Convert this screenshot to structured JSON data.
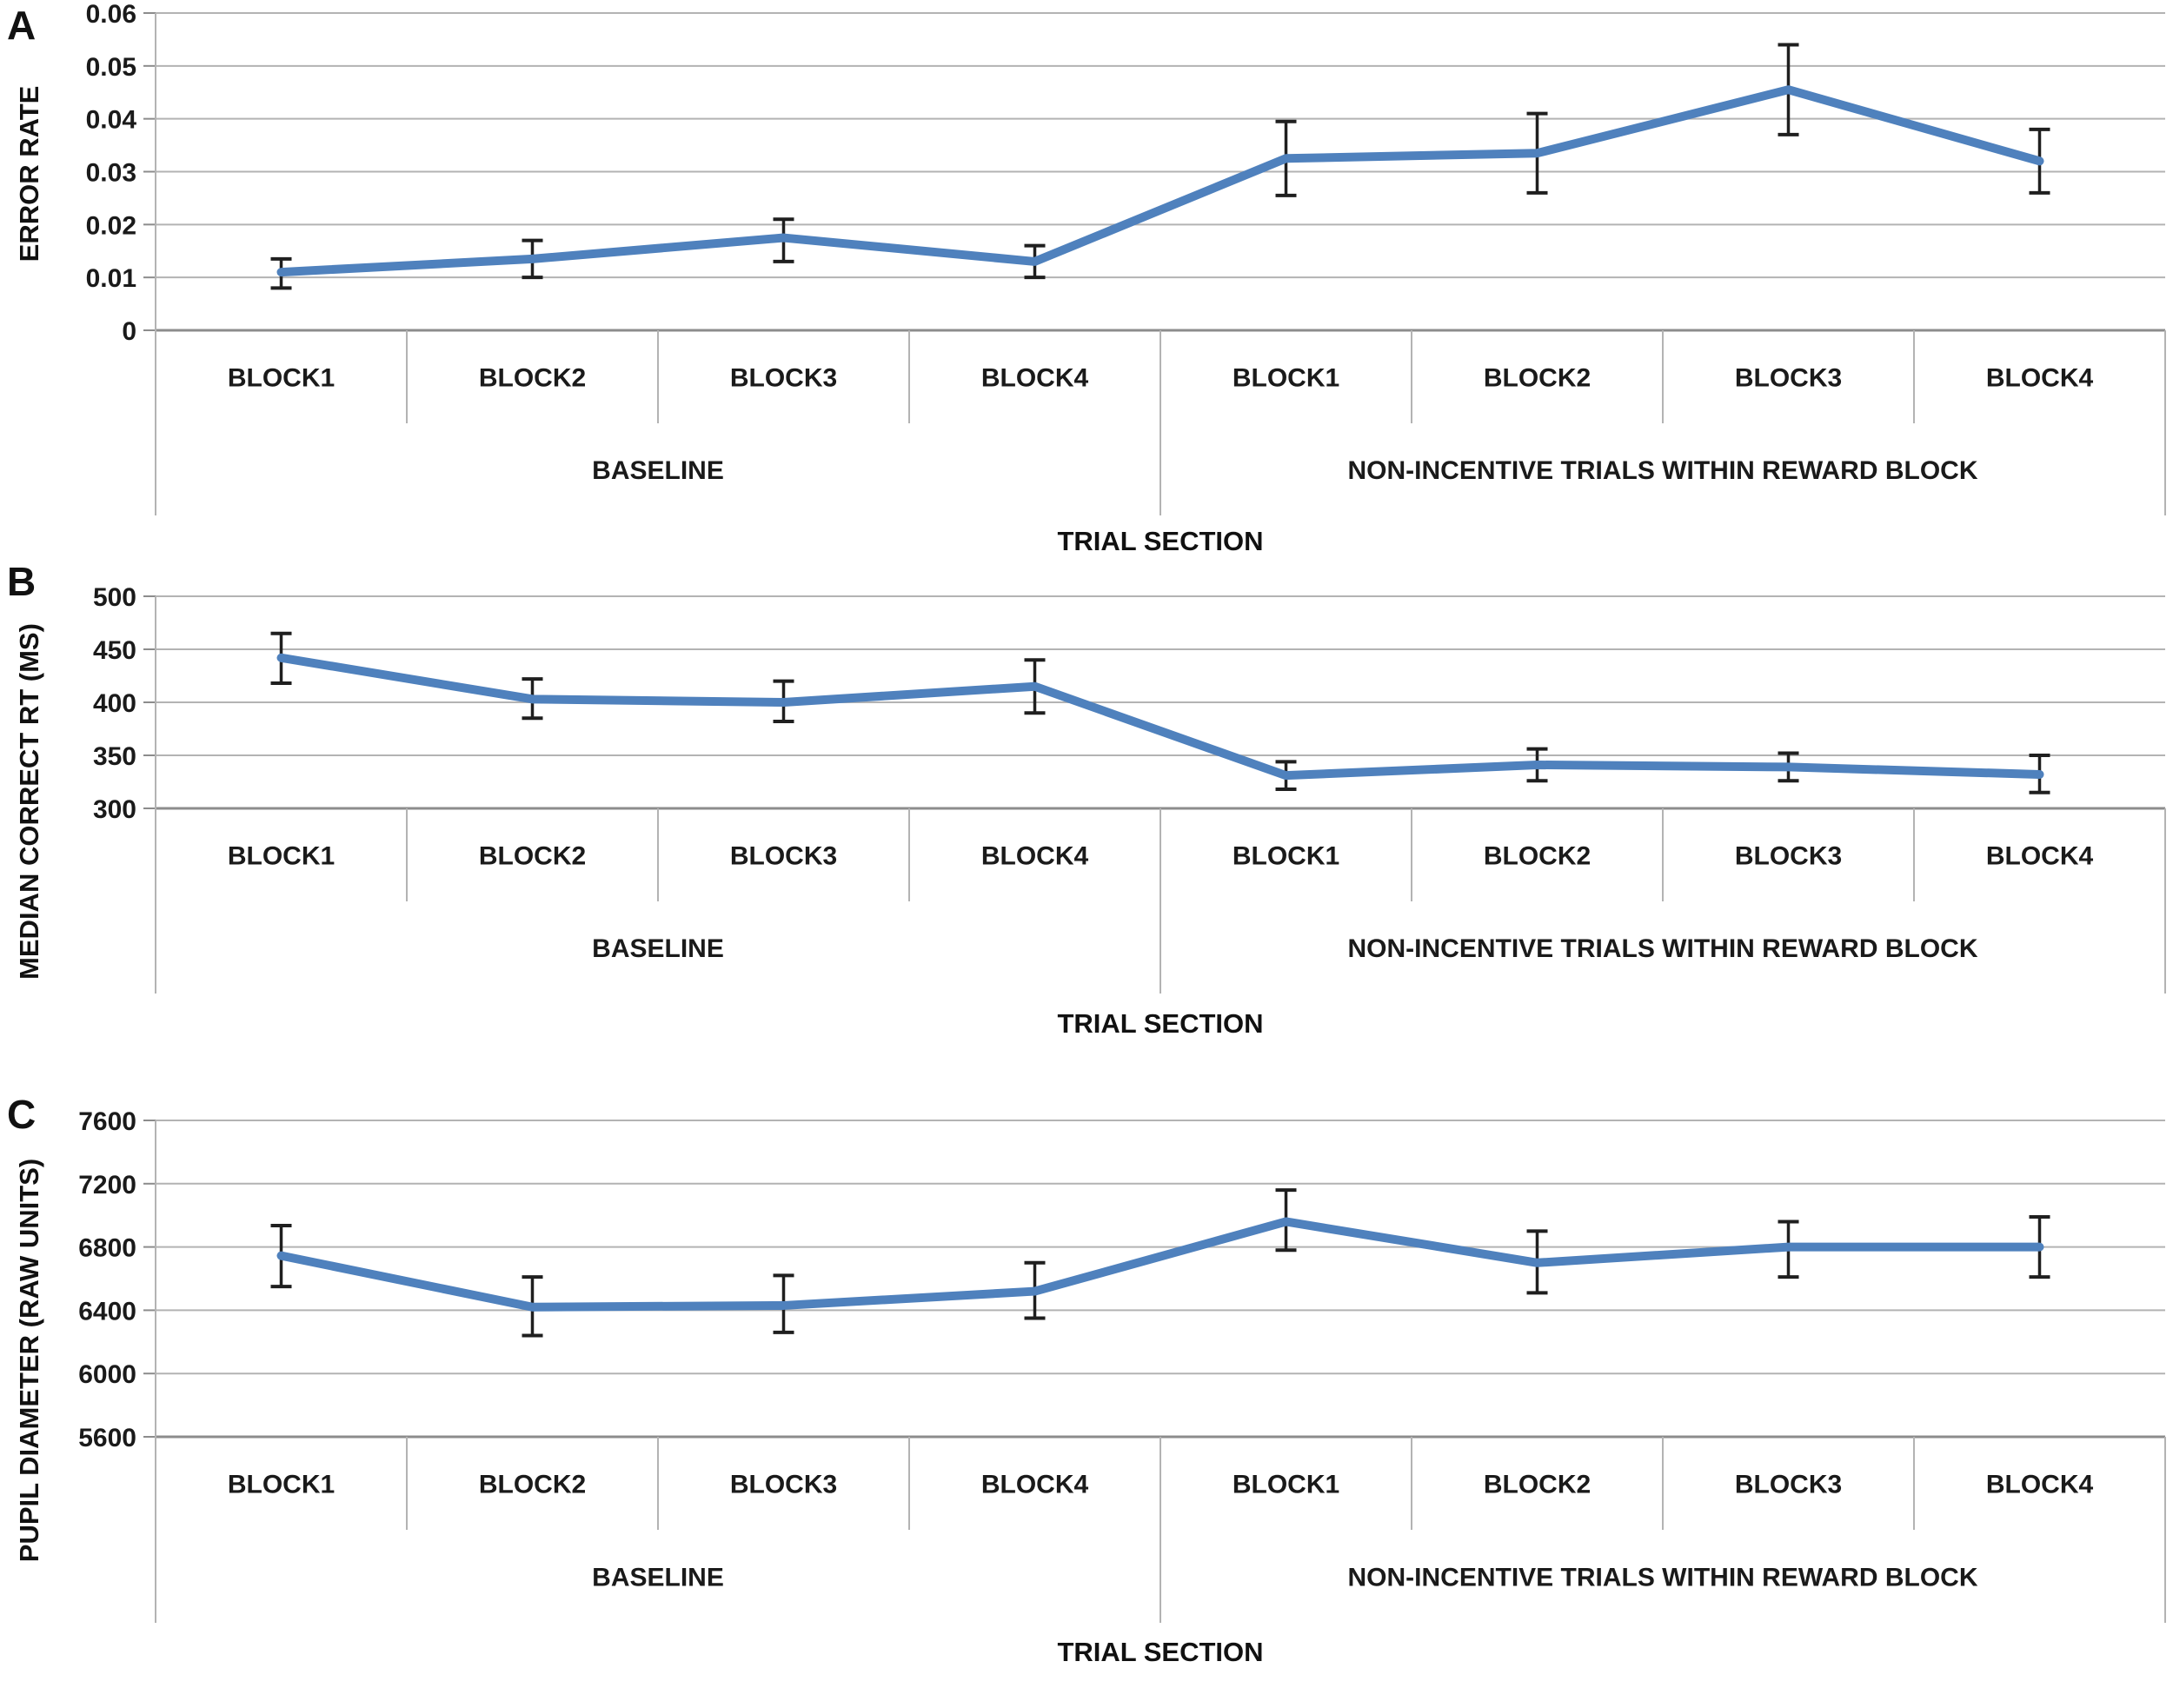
{
  "figure": {
    "line_color": "#4f81bd",
    "grid_color": "#b3b3b3",
    "axis_color": "#8c8c8c",
    "error_bar_color": "#1f1f1f",
    "text_color": "#1a1a1a"
  },
  "chart_data": [
    {
      "type": "line",
      "panel_label": "A",
      "ylabel": "ERROR RATE",
      "xlabel": "TRIAL SECTION",
      "ylim": [
        0,
        0.06
      ],
      "yticks": [
        0,
        0.01,
        0.02,
        0.03,
        0.04,
        0.05,
        0.06
      ],
      "ytick_labels": [
        "0",
        "0.01",
        "0.02",
        "0.03",
        "0.04",
        "0.05",
        "0.06"
      ],
      "grid": true,
      "legend": "none",
      "categories": [
        "BLOCK1",
        "BLOCK2",
        "BLOCK3",
        "BLOCK4",
        "BLOCK1",
        "BLOCK2",
        "BLOCK3",
        "BLOCK4"
      ],
      "groups": [
        {
          "label": "BASELINE",
          "span": 4
        },
        {
          "label": "NON-INCENTIVE TRIALS WITHIN REWARD BLOCK",
          "span": 4
        }
      ],
      "series": [
        {
          "name": "mean error rate",
          "values": [
            0.011,
            0.0135,
            0.0175,
            0.013,
            0.0325,
            0.0335,
            0.0455,
            0.032
          ],
          "error_low": [
            0.008,
            0.01,
            0.013,
            0.01,
            0.0255,
            0.026,
            0.037,
            0.026
          ],
          "error_high": [
            0.0135,
            0.017,
            0.021,
            0.016,
            0.0395,
            0.041,
            0.054,
            0.038
          ]
        }
      ]
    },
    {
      "type": "line",
      "panel_label": "B",
      "ylabel": "MEDIAN CORRECT RT (MS)",
      "xlabel": "TRIAL SECTION",
      "ylim": [
        300,
        500
      ],
      "yticks": [
        300,
        350,
        400,
        450,
        500
      ],
      "ytick_labels": [
        "300",
        "350",
        "400",
        "450",
        "500"
      ],
      "grid": true,
      "legend": "none",
      "categories": [
        "BLOCK1",
        "BLOCK2",
        "BLOCK3",
        "BLOCK4",
        "BLOCK1",
        "BLOCK2",
        "BLOCK3",
        "BLOCK4"
      ],
      "groups": [
        {
          "label": "BASELINE",
          "span": 4
        },
        {
          "label": "NON-INCENTIVE TRIALS WITHIN REWARD BLOCK",
          "span": 4
        }
      ],
      "series": [
        {
          "name": "median correct RT",
          "values": [
            442,
            403,
            400,
            415,
            331,
            341,
            339,
            332
          ],
          "error_low": [
            418,
            385,
            382,
            390,
            318,
            326,
            326,
            315
          ],
          "error_high": [
            465,
            422,
            420,
            440,
            344,
            356,
            352,
            350
          ]
        }
      ]
    },
    {
      "type": "line",
      "panel_label": "C",
      "ylabel": "PUPIL DIAMETER (RAW UNITS)",
      "xlabel": "TRIAL SECTION",
      "ylim": [
        5600,
        7600
      ],
      "yticks": [
        5600,
        6000,
        6400,
        6800,
        7200,
        7600
      ],
      "ytick_labels": [
        "5600",
        "6000",
        "6400",
        "6800",
        "7200",
        "7600"
      ],
      "grid": true,
      "legend": "none",
      "categories": [
        "BLOCK1",
        "BLOCK2",
        "BLOCK3",
        "BLOCK4",
        "BLOCK1",
        "BLOCK2",
        "BLOCK3",
        "BLOCK4"
      ],
      "groups": [
        {
          "label": "BASELINE",
          "span": 4
        },
        {
          "label": "NON-INCENTIVE TRIALS WITHIN REWARD BLOCK",
          "span": 4
        }
      ],
      "series": [
        {
          "name": "pupil diameter",
          "values": [
            6745,
            6420,
            6430,
            6520,
            6960,
            6700,
            6800,
            6800
          ],
          "error_low": [
            6550,
            6240,
            6260,
            6350,
            6780,
            6510,
            6610,
            6610
          ],
          "error_high": [
            6935,
            6610,
            6620,
            6700,
            7160,
            6900,
            6960,
            6990
          ]
        }
      ]
    }
  ]
}
